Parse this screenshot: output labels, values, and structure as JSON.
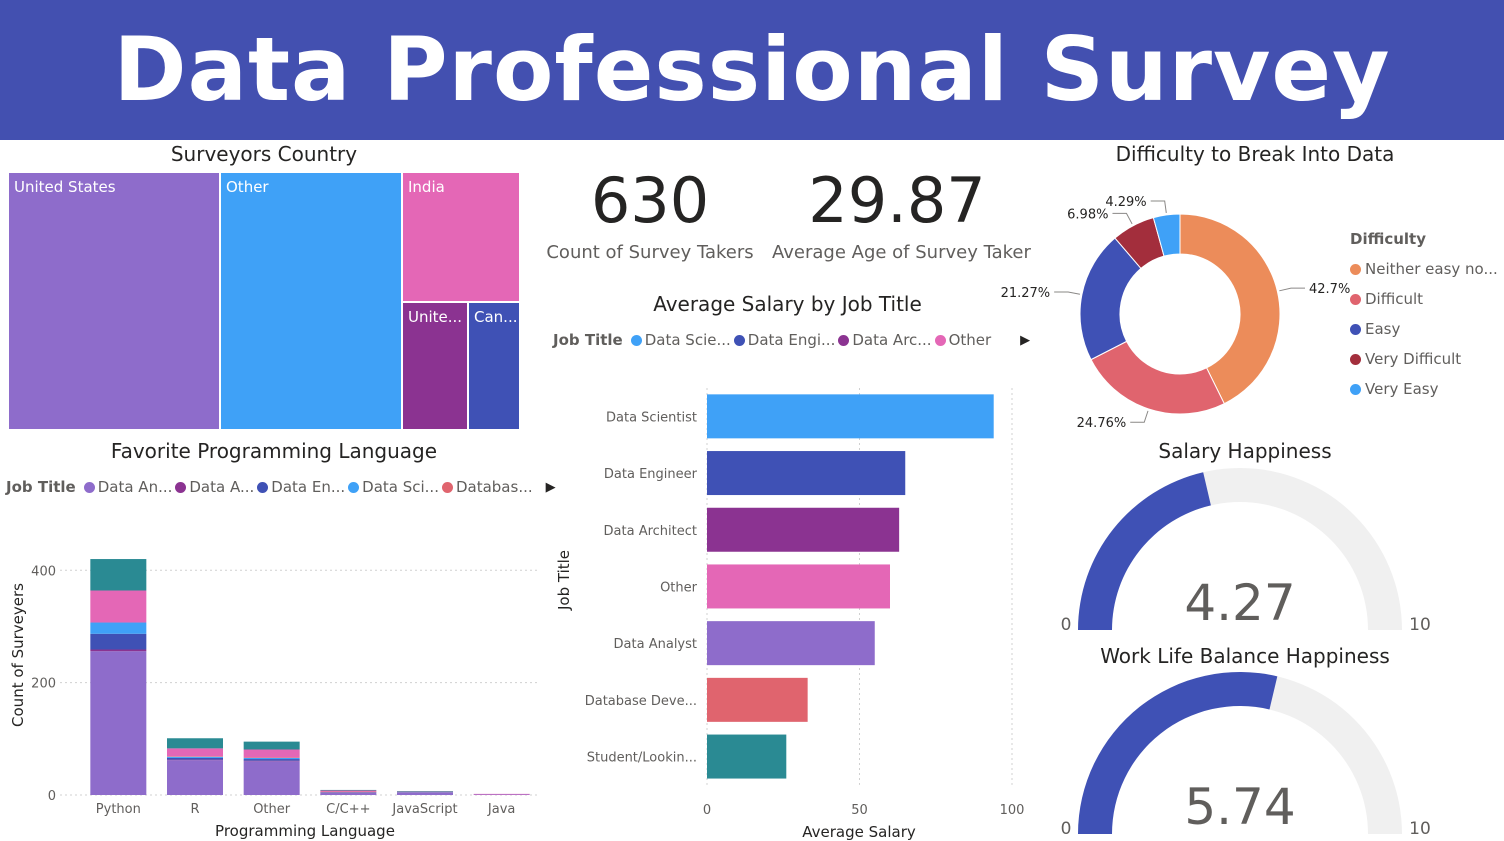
{
  "header": {
    "title": "Data Professional Survey"
  },
  "colors": {
    "header_bg": "#4350b0"
  },
  "country_treemap": {
    "title": "Surveyors Country",
    "cells": [
      {
        "label": "United States",
        "color": "#8e6ccb"
      },
      {
        "label": "Other",
        "color": "#3fa1f7"
      },
      {
        "label": "India",
        "color": "#e467b6"
      },
      {
        "label": "Unite...",
        "color": "#8b3391"
      },
      {
        "label": "Can...",
        "color": "#3f51b5"
      }
    ]
  },
  "kpis": [
    {
      "value": "630",
      "label": "Count of Survey Takers"
    },
    {
      "value": "29.87",
      "label": "Average Age of Survey Taker"
    }
  ],
  "language_chart": {
    "title": "Favorite Programming Language",
    "legend_title": "Job Title",
    "legend_items": [
      {
        "label": "Data An...",
        "color": "#8e6ccb"
      },
      {
        "label": "Data A...",
        "color": "#8b3391"
      },
      {
        "label": "Data En...",
        "color": "#3f51b5"
      },
      {
        "label": "Data Sci...",
        "color": "#3fa1f7"
      },
      {
        "label": "Databas...",
        "color": "#e0646e"
      }
    ]
  },
  "salary_chart": {
    "title": "Average Salary by Job Title",
    "legend_title": "Job Title",
    "legend_items": [
      {
        "label": "Data Scie...",
        "color": "#3fa1f7"
      },
      {
        "label": "Data Engi...",
        "color": "#3f51b5"
      },
      {
        "label": "Data Arc...",
        "color": "#8b3391"
      },
      {
        "label": "Other",
        "color": "#e467b6"
      }
    ]
  },
  "difficulty_chart": {
    "title": "Difficulty to Break Into Data",
    "legend_title": "Difficulty",
    "legend_items": [
      {
        "label": "Neither easy no...",
        "color": "#ec8c5a"
      },
      {
        "label": "Difficult",
        "color": "#e0646e"
      },
      {
        "label": "Easy",
        "color": "#3f51b5"
      },
      {
        "label": "Very Difficult",
        "color": "#a32e3c"
      },
      {
        "label": "Very Easy",
        "color": "#3fa1f7"
      }
    ]
  },
  "salary_happiness": {
    "title": "Salary Happiness"
  },
  "wlb_happiness": {
    "title": "Work Life Balance Happiness"
  },
  "chart_data": [
    {
      "id": "language",
      "type": "bar",
      "stacked": true,
      "title": "Favorite Programming Language",
      "xlabel": "Programming Language",
      "ylabel": "Count of Surveyers",
      "categories": [
        "Python",
        "R",
        "Other",
        "C/C++",
        "JavaScript",
        "Java"
      ],
      "yticks": [
        0,
        200,
        400
      ],
      "ylim": [
        0,
        445
      ],
      "series": [
        {
          "name": "Data An...",
          "color": "#8e6ccb",
          "values": [
            256,
            62,
            60,
            4,
            4,
            1
          ]
        },
        {
          "name": "Data A...",
          "color": "#8b3391",
          "values": [
            3,
            1,
            1,
            0,
            0,
            0
          ]
        },
        {
          "name": "Data En...",
          "color": "#3f51b5",
          "values": [
            28,
            3,
            3,
            1,
            1,
            0
          ]
        },
        {
          "name": "Data Sci...",
          "color": "#3fa1f7",
          "values": [
            20,
            2,
            2,
            0,
            0,
            0
          ]
        },
        {
          "name": "Databas...",
          "color": "#e0646e",
          "values": [
            0,
            1,
            1,
            1,
            0,
            0
          ]
        },
        {
          "name": "",
          "color": "#e467b6",
          "values": [
            57,
            14,
            14,
            2,
            1,
            1
          ]
        },
        {
          "name": "",
          "color": "#2a8a93",
          "values": [
            56,
            18,
            14,
            1,
            1,
            0
          ]
        }
      ]
    },
    {
      "id": "salary",
      "type": "bar",
      "orientation": "horizontal",
      "title": "Average Salary by Job Title",
      "xlabel": "Average Salary",
      "ylabel": "Job Title",
      "categories": [
        "Data Scientist",
        "Data Engineer",
        "Data Architect",
        "Other",
        "Data Analyst",
        "Database Deve...",
        "Student/Lookin..."
      ],
      "values": [
        94,
        65,
        63,
        60,
        55,
        33,
        26
      ],
      "colors": [
        "#3fa1f7",
        "#3f51b5",
        "#8b3391",
        "#e467b6",
        "#8e6ccb",
        "#e0646e",
        "#2a8a93"
      ],
      "xticks": [
        0,
        50,
        100
      ],
      "xlim": [
        0,
        100
      ]
    },
    {
      "id": "difficulty",
      "type": "pie",
      "donut": true,
      "title": "Difficulty to Break Into Data",
      "labels": [
        "Neither easy no...",
        "Difficult",
        "Easy",
        "Very Difficult",
        "Very Easy"
      ],
      "values": [
        42.7,
        24.76,
        21.27,
        6.98,
        4.29
      ],
      "value_labels": [
        "42.7%",
        "24.76%",
        "21.27%",
        "6.98%",
        "4.29%"
      ],
      "colors": [
        "#ec8c5a",
        "#e0646e",
        "#3f51b5",
        "#a32e3c",
        "#3fa1f7"
      ]
    },
    {
      "id": "salary_gauge",
      "type": "gauge",
      "title": "Salary Happiness",
      "value": 4.27,
      "value_label": "4.27",
      "min": 0,
      "max": 10,
      "min_label": "0",
      "max_label": "10"
    },
    {
      "id": "wlb_gauge",
      "type": "gauge",
      "title": "Work Life Balance Happiness",
      "value": 5.74,
      "value_label": "5.74",
      "min": 0,
      "max": 10,
      "min_label": "0",
      "max_label": "10"
    }
  ]
}
